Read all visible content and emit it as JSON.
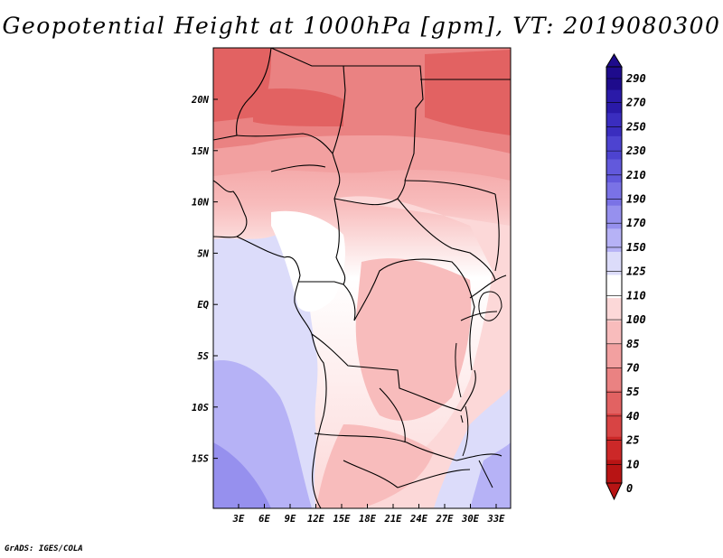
{
  "title": "Geopotential Height at 1000hPa [gpm], VT: 2019080300",
  "credit": "GrADS: IGES/COLA",
  "map": {
    "lat_labels": [
      "20N",
      "15N",
      "10N",
      "5N",
      "EQ",
      "5S",
      "10S",
      "15S"
    ],
    "lon_labels": [
      "3E",
      "6E",
      "9E",
      "12E",
      "15E",
      "18E",
      "21E",
      "24E",
      "27E",
      "30E",
      "33E"
    ]
  },
  "colorbar": {
    "labels": [
      "290",
      "270",
      "250",
      "230",
      "210",
      "190",
      "170",
      "150",
      "125",
      "110",
      "100",
      "85",
      "70",
      "55",
      "40",
      "25",
      "10",
      "0"
    ],
    "colors": [
      "#1e0b8c",
      "#2a1aa8",
      "#3a2dbf",
      "#4d43d0",
      "#6259dc",
      "#7a72e6",
      "#9690ee",
      "#b6b2f6",
      "#dcdcfa",
      "#ffffff",
      "#fcd8d8",
      "#f8bcbc",
      "#f2a0a0",
      "#ea8282",
      "#e26262",
      "#d84444",
      "#cc2828",
      "#b81414"
    ]
  }
}
